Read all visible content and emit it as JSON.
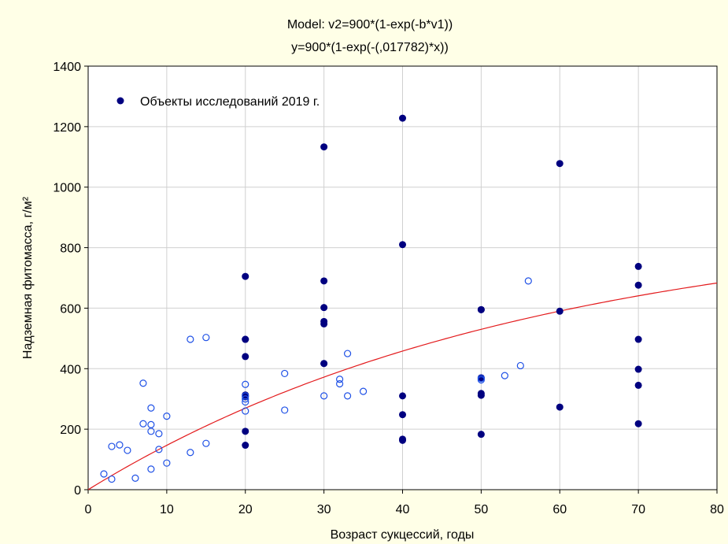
{
  "chart_data": {
    "type": "scatter",
    "title": "Model: v2=900*(1-exp(-b*v1))",
    "subtitle": "y=900*(1-exp(-(,017782)*x))",
    "xlabel": "Возраст сукцессий, годы",
    "ylabel": "Надземная фитомасса, г/м²",
    "xlim": [
      0,
      80
    ],
    "ylim": [
      0,
      1400
    ],
    "xticks": [
      0,
      10,
      20,
      30,
      40,
      50,
      60,
      70,
      80
    ],
    "yticks": [
      0,
      200,
      400,
      600,
      800,
      1000,
      1200,
      1400
    ],
    "grid": true,
    "legend_position": "top-left",
    "colors": {
      "points": "#000080",
      "open_points": "#1E50E6",
      "fit": "#E31A1C",
      "background": "#FFFFE7",
      "plot_background": "#FFFFFF"
    },
    "model": {
      "a": 900,
      "b": 0.017782
    },
    "series": [
      {
        "name": "Объекты исследований 2019 г.",
        "marker": "filled",
        "x": [
          20,
          20,
          20,
          20,
          20,
          20,
          20,
          20,
          30,
          30,
          30,
          30,
          30,
          30,
          30,
          40,
          40,
          40,
          40,
          40,
          40,
          50,
          50,
          50,
          50,
          50,
          50,
          60,
          60,
          60,
          70,
          70,
          70,
          70,
          70,
          70
        ],
        "y": [
          705,
          497,
          440,
          313,
          307,
          193,
          147,
          497,
          1133,
          690,
          602,
          556,
          548,
          417,
          417,
          1228,
          810,
          310,
          248,
          167,
          163,
          595,
          370,
          318,
          312,
          183,
          595,
          1078,
          590,
          273,
          738,
          676,
          497,
          398,
          345,
          218
        ]
      },
      {
        "marker": "open",
        "x": [
          2,
          3,
          3,
          4,
          5,
          6,
          7,
          7,
          8,
          8,
          8,
          8,
          9,
          9,
          10,
          10,
          13,
          13,
          15,
          15,
          20,
          20,
          20,
          20,
          20,
          25,
          25,
          30,
          32,
          32,
          33,
          33,
          35,
          50,
          50,
          53,
          55,
          56
        ],
        "y": [
          52,
          35,
          143,
          148,
          130,
          38,
          352,
          218,
          270,
          215,
          193,
          68,
          185,
          133,
          243,
          88,
          497,
          123,
          503,
          153,
          348,
          300,
          290,
          260,
          310,
          384,
          263,
          310,
          365,
          350,
          450,
          310,
          325,
          368,
          363,
          377,
          410,
          690
        ]
      }
    ]
  }
}
